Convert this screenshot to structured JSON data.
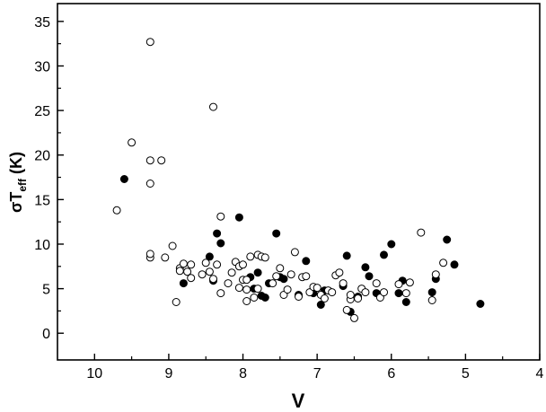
{
  "chart_data": {
    "type": "scatter",
    "xlabel": "V",
    "ylabel": {
      "main": "σT",
      "sub": "eff",
      "unit": " (K)"
    },
    "xlim": [
      10.5,
      4
    ],
    "ylim": [
      -3,
      37
    ],
    "x_ticks": [
      10,
      9,
      8,
      7,
      6,
      5,
      4
    ],
    "y_ticks": [
      0,
      5,
      10,
      15,
      20,
      25,
      30,
      35
    ],
    "grid": false,
    "legend": "none",
    "colors": {
      "filled": "#000000",
      "open_fill": "#ffffff",
      "stroke": "#000000"
    },
    "series": [
      {
        "marker": "filled-circle",
        "points": [
          [
            9.6,
            17.3
          ],
          [
            8.8,
            5.6
          ],
          [
            8.45,
            8.6
          ],
          [
            8.4,
            5.9
          ],
          [
            8.35,
            11.2
          ],
          [
            8.3,
            10.1
          ],
          [
            8.05,
            13.0
          ],
          [
            7.9,
            6.3
          ],
          [
            7.85,
            5.0
          ],
          [
            7.8,
            6.8
          ],
          [
            7.75,
            4.2
          ],
          [
            7.7,
            4.0
          ],
          [
            7.65,
            5.6
          ],
          [
            7.55,
            11.2
          ],
          [
            7.5,
            6.3
          ],
          [
            7.45,
            6.1
          ],
          [
            7.25,
            4.3
          ],
          [
            7.15,
            8.1
          ],
          [
            7.05,
            4.5
          ],
          [
            6.95,
            3.2
          ],
          [
            6.9,
            4.8
          ],
          [
            6.65,
            5.3
          ],
          [
            6.6,
            8.7
          ],
          [
            6.55,
            2.4
          ],
          [
            6.45,
            4.1
          ],
          [
            6.35,
            7.4
          ],
          [
            6.3,
            6.4
          ],
          [
            6.2,
            4.5
          ],
          [
            6.1,
            8.8
          ],
          [
            6.0,
            10.0
          ],
          [
            5.9,
            4.5
          ],
          [
            5.85,
            5.9
          ],
          [
            5.8,
            3.5
          ],
          [
            5.45,
            4.6
          ],
          [
            5.4,
            6.1
          ],
          [
            5.25,
            10.5
          ],
          [
            5.15,
            7.7
          ],
          [
            4.8,
            3.3
          ]
        ]
      },
      {
        "marker": "open-circle",
        "points": [
          [
            9.25,
            32.7
          ],
          [
            9.5,
            21.4
          ],
          [
            8.4,
            25.4
          ],
          [
            9.25,
            19.4
          ],
          [
            9.1,
            19.4
          ],
          [
            9.25,
            16.8
          ],
          [
            9.7,
            13.8
          ],
          [
            8.3,
            13.1
          ],
          [
            8.95,
            9.8
          ],
          [
            9.25,
            8.5
          ],
          [
            9.25,
            8.9
          ],
          [
            9.05,
            8.5
          ],
          [
            8.85,
            7.3
          ],
          [
            8.8,
            7.8
          ],
          [
            8.7,
            7.7
          ],
          [
            8.75,
            6.9
          ],
          [
            8.7,
            6.2
          ],
          [
            8.55,
            6.6
          ],
          [
            8.5,
            7.9
          ],
          [
            8.45,
            6.9
          ],
          [
            8.4,
            6.1
          ],
          [
            8.35,
            7.7
          ],
          [
            8.3,
            4.5
          ],
          [
            8.2,
            5.6
          ],
          [
            8.15,
            6.8
          ],
          [
            8.1,
            8.0
          ],
          [
            8.05,
            7.5
          ],
          [
            8.05,
            5.1
          ],
          [
            8.0,
            6.0
          ],
          [
            7.95,
            6.0
          ],
          [
            7.9,
            8.6
          ],
          [
            7.95,
            4.9
          ],
          [
            7.95,
            3.6
          ],
          [
            7.85,
            4.0
          ],
          [
            7.8,
            5.0
          ],
          [
            7.8,
            8.8
          ],
          [
            7.75,
            8.6
          ],
          [
            7.7,
            8.5
          ],
          [
            7.6,
            5.6
          ],
          [
            7.55,
            6.4
          ],
          [
            7.5,
            7.3
          ],
          [
            7.45,
            4.3
          ],
          [
            7.4,
            4.9
          ],
          [
            7.35,
            6.6
          ],
          [
            7.25,
            4.1
          ],
          [
            7.3,
            9.1
          ],
          [
            7.2,
            6.3
          ],
          [
            7.15,
            6.4
          ],
          [
            7.1,
            4.6
          ],
          [
            7.05,
            5.2
          ],
          [
            7.0,
            5.1
          ],
          [
            6.95,
            4.3
          ],
          [
            6.9,
            3.9
          ],
          [
            6.85,
            4.8
          ],
          [
            6.8,
            4.6
          ],
          [
            6.75,
            6.5
          ],
          [
            6.7,
            6.8
          ],
          [
            6.65,
            5.6
          ],
          [
            6.6,
            2.6
          ],
          [
            6.55,
            3.8
          ],
          [
            6.55,
            4.3
          ],
          [
            6.5,
            1.7
          ],
          [
            6.45,
            3.9
          ],
          [
            6.4,
            5.0
          ],
          [
            6.35,
            4.6
          ],
          [
            6.2,
            5.6
          ],
          [
            6.15,
            4.0
          ],
          [
            6.1,
            4.6
          ],
          [
            5.9,
            5.5
          ],
          [
            5.8,
            4.5
          ],
          [
            5.75,
            5.7
          ],
          [
            5.6,
            11.3
          ],
          [
            5.45,
            3.7
          ],
          [
            5.4,
            6.6
          ],
          [
            5.3,
            7.9
          ],
          [
            8.9,
            3.5
          ],
          [
            8.85,
            7.0
          ],
          [
            8.0,
            7.7
          ]
        ]
      }
    ]
  }
}
